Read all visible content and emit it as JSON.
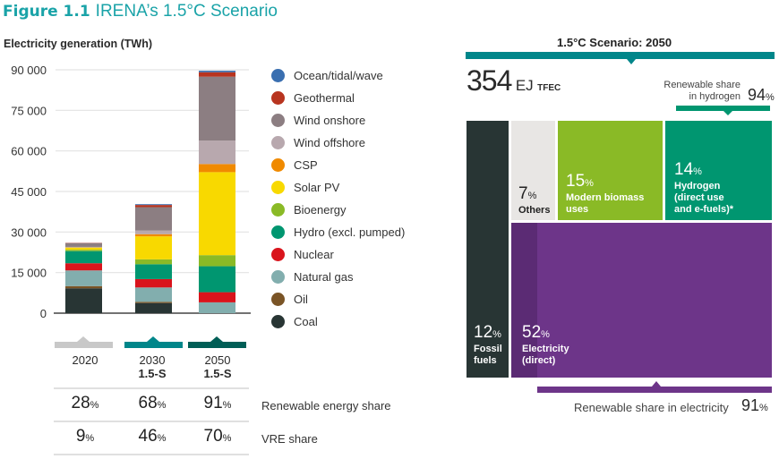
{
  "title": {
    "figure": "Figure 1.1",
    "text": "IRENA’s 1.5°C Scenario"
  },
  "colors": {
    "ocean": "#3a6fb0",
    "geothermal": "#b8341f",
    "wind_onshore": "#8c7e82",
    "wind_offshore": "#b8a8ae",
    "csp": "#f08a00",
    "solar": "#f8d900",
    "bioenergy": "#8aba26",
    "hydro": "#009670",
    "nuclear": "#d9141c",
    "gas": "#82aeae",
    "oil": "#7a5426",
    "coal": "#283534"
  },
  "chart_data": {
    "type": "bar",
    "title": "Electricity generation (TWh)",
    "ylabel": "Electricity generation (TWh)",
    "ylim": [
      0,
      90000
    ],
    "yticks": [
      "0",
      "15 000",
      "30 000",
      "45 000",
      "60 000",
      "75 000",
      "90 000"
    ],
    "ytick_values": [
      0,
      15000,
      30000,
      45000,
      60000,
      75000,
      90000
    ],
    "categories": [
      "2020",
      "2030",
      "2050"
    ],
    "stacked": true,
    "legend_position": "right",
    "series": [
      {
        "key": "coal",
        "name": "Coal",
        "values": [
          9200,
          3750,
          0
        ]
      },
      {
        "key": "oil",
        "name": "Oil",
        "values": [
          800,
          450,
          0
        ]
      },
      {
        "key": "gas",
        "name": "Natural gas",
        "values": [
          5800,
          5300,
          4000
        ]
      },
      {
        "key": "nuclear",
        "name": "Nuclear",
        "values": [
          2650,
          3100,
          3750
        ]
      },
      {
        "key": "hydro",
        "name": "Hydro (excl. pumped)",
        "values": [
          4500,
          5500,
          9600
        ]
      },
      {
        "key": "bioenergy",
        "name": "Bioenergy",
        "values": [
          500,
          1800,
          4100
        ]
      },
      {
        "key": "solar",
        "name": "Solar PV",
        "values": [
          800,
          8500,
          30700
        ]
      },
      {
        "key": "csp",
        "name": "CSP",
        "values": [
          50,
          800,
          3000
        ]
      },
      {
        "key": "wind_offshore",
        "name": "Wind offshore",
        "values": [
          200,
          1400,
          8700
        ]
      },
      {
        "key": "wind_onshore",
        "name": "Wind onshore",
        "values": [
          1400,
          8600,
          23600
        ]
      },
      {
        "key": "geothermal",
        "name": "Geothermal",
        "values": [
          100,
          800,
          1650
        ]
      },
      {
        "key": "ocean",
        "name": "Ocean/tidal/wave",
        "values": [
          20,
          300,
          550
        ]
      }
    ]
  },
  "table": {
    "columns": [
      {
        "year": "2020",
        "sub": "",
        "color": "#c8c8c8"
      },
      {
        "year": "2030",
        "sub": "1.5-S",
        "color": "#00868a"
      },
      {
        "year": "2050",
        "sub": "1.5-S",
        "color": "#005e56"
      }
    ],
    "rows": [
      {
        "label": "Renewable energy share",
        "values": [
          "28",
          "68",
          "91"
        ]
      },
      {
        "label": "VRE share",
        "values": [
          "9",
          "46",
          "70"
        ]
      }
    ],
    "unit": "%"
  },
  "tfec": {
    "header": "1.5°C Scenario: 2050",
    "total_value": "354",
    "total_unit": "EJ",
    "total_label": "TFEC",
    "hydrogen_note": {
      "line1": "Renewable share",
      "line2": "in hydrogen",
      "value": "94"
    },
    "electricity_note": {
      "label": "Renewable share in electricity",
      "value": "91"
    },
    "blocks": {
      "fossil": {
        "pct": "12",
        "label1": "Fossil",
        "label2": "fuels",
        "color": "#283534"
      },
      "others": {
        "pct": "7",
        "label1": "Others",
        "color": "#e8e6e4"
      },
      "biomass": {
        "pct": "15",
        "label1": "Modern biomass",
        "label2": "uses",
        "color": "#8aba26"
      },
      "hydrogen": {
        "pct": "14",
        "label1": "Hydrogen",
        "label2": "(direct use",
        "label3": "and e-fuels)*",
        "color": "#009670"
      },
      "electricity": {
        "pct": "52",
        "label1": "Electricity",
        "label2": "(direct)",
        "color": "#6d3589"
      }
    },
    "unit": "%"
  }
}
